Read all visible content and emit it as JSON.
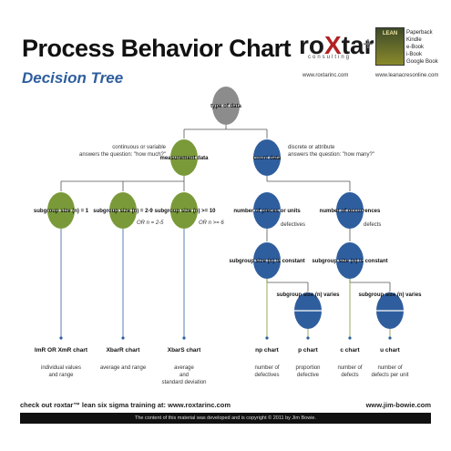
{
  "header": {
    "title": "Process Behavior Chart",
    "subtitle": "Decision Tree",
    "logo_main": "roXtar",
    "logo_sub": "consulting",
    "logo_url": "www.roxtarinc.com",
    "plus": "+",
    "book_title": "LEAN",
    "book_formats": "Paperback\nKindle\ne-Book\ni-Book\nGoogle Book",
    "book_url": "www.leanacresonline.com"
  },
  "colors": {
    "gray": "#8c8c8c",
    "green": "#7a9a3a",
    "blue": "#2f5e9e",
    "line": "#555555"
  },
  "nodes": {
    "root": "type of data",
    "measurement": "measurement data",
    "count": "count data",
    "sub1": "subgroup size (n) = 1",
    "sub29": "subgroup size (n) = 2-9",
    "sub10": "subgroup size (n) >= 10",
    "pieces": "number of pieces or units",
    "occurrences": "number of occurrences",
    "np_const": "subgroup size (n) is constant",
    "p_var": "subgroup size (n) varies",
    "c_const": "subgroup size (n) is constant",
    "u_var": "subgroup size (n) varies"
  },
  "annotations": {
    "continuous": "continuous or variable\nanswers the question: \"how much?\"",
    "discrete": "discrete or attribute\nanswers the question: \"how many?\"",
    "or25": "OR n = 2-5",
    "or6": "OR n >= 6",
    "defectives": "defectives",
    "defects": "defects"
  },
  "leaves": [
    {
      "chart": "ImR OR XmR chart",
      "desc": "individual values\nand range"
    },
    {
      "chart": "XbarR chart",
      "desc": "average and range"
    },
    {
      "chart": "XbarS chart",
      "desc": "average\nand\nstandard deviation"
    },
    {
      "chart": "np chart",
      "desc": "number of\ndefectives"
    },
    {
      "chart": "p chart",
      "desc": "proportion\ndefective"
    },
    {
      "chart": "c chart",
      "desc": "number of\ndefects"
    },
    {
      "chart": "u chart",
      "desc": "number of\ndefects per unit"
    }
  ],
  "footer": {
    "left": "check out roxtar™ lean six sigma training at: www.roxtarinc.com",
    "right": "www.jim-bowie.com",
    "copyright": "The content of this material was developed and is copyright © 2011 by Jim Bowie."
  }
}
